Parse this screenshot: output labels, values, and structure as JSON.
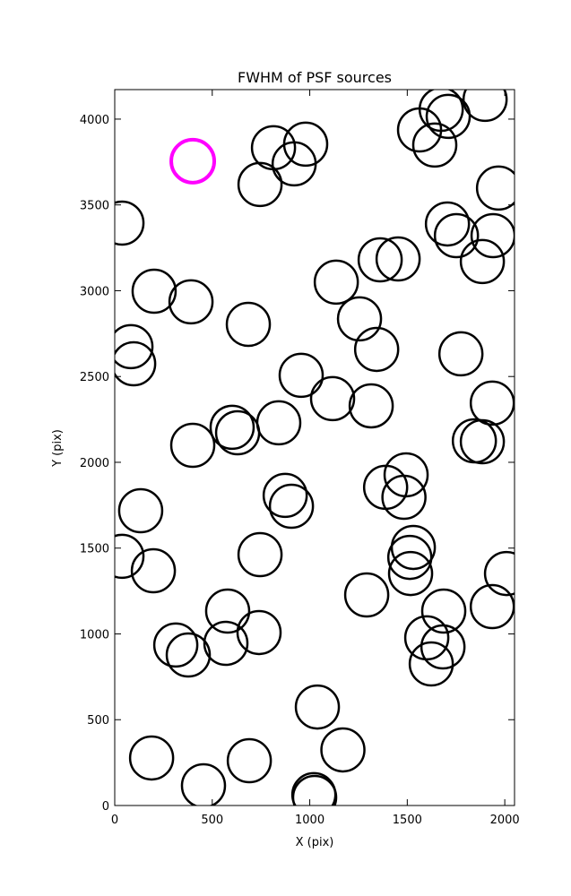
{
  "chart_data": {
    "type": "scatter",
    "title": "FWHM of PSF sources",
    "x_label": "X (pix)",
    "y_label": "Y (pix)",
    "xlim": [
      0,
      2050
    ],
    "ylim": [
      0,
      4172
    ],
    "xticks": [
      0,
      500,
      1000,
      1500,
      2000
    ],
    "yticks": [
      0,
      500,
      1000,
      1500,
      2000,
      2500,
      3000,
      3500,
      4000
    ],
    "series": [
      {
        "color": "#000000",
        "x": [
          814,
          979,
          920,
          745,
          37,
          1563,
          1674,
          1710,
          1641,
          1899,
          1968,
          1706,
          1752,
          1940,
          1885,
          1361,
          1453,
          1136,
          202,
          391,
          685,
          1255,
          1343,
          83,
          97,
          1775,
          956,
          1117,
          1315,
          1936,
          602,
          630,
          841,
          400,
          1844,
          1885,
          1494,
          1389,
          1483,
          874,
          906,
          133,
          37,
          745,
          1531,
          1513,
          1517,
          198,
          2009,
          1292,
          579,
          740,
          1687,
          1936,
          313,
          377,
          570,
          1600,
          1683,
          1623,
          1039,
          1170,
          189,
          690,
          455,
          1021,
          1025
        ],
        "values": [
          3833,
          3854,
          3739,
          3619,
          3394,
          3937,
          4057,
          4016,
          3849,
          4115,
          3598,
          3389,
          3321,
          3321,
          3170,
          3180,
          3185,
          3050,
          2997,
          2935,
          2804,
          2836,
          2658,
          2674,
          2574,
          2632,
          2507,
          2371,
          2329,
          2345,
          2204,
          2172,
          2230,
          2099,
          2125,
          2120,
          1927,
          1854,
          1796,
          1807,
          1744,
          1718,
          1452,
          1462,
          1504,
          1446,
          1352,
          1368,
          1352,
          1227,
          1133,
          1008,
          1133,
          1159,
          935,
          877,
          945,
          977,
          924,
          825,
          574,
          324,
          277,
          261,
          115,
          63,
          47
        ]
      },
      {
        "color": "#ff00ff",
        "x": [
          400
        ],
        "values": [
          3755
        ]
      }
    ]
  }
}
